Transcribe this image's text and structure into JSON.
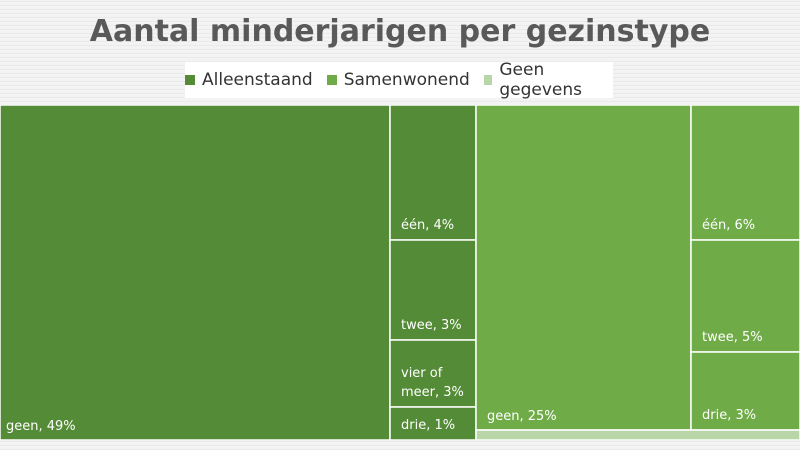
{
  "chart_data": {
    "type": "treemap",
    "title": "Aantal minderjarigen per gezinstype",
    "legend": [
      {
        "name": "Alleenstaand",
        "color": "#548b36"
      },
      {
        "name": "Samenwonend",
        "color": "#6fac47"
      },
      {
        "name": "Geen gegevens",
        "color": "#b8d6a8"
      }
    ],
    "legend_position": "top",
    "groups": [
      {
        "name": "Alleenstaand",
        "color": "#548b36",
        "tiles": [
          {
            "label": "geen, 49%",
            "value": 49
          },
          {
            "label": "één, 4%",
            "value": 4
          },
          {
            "label": "twee, 3%",
            "value": 3
          },
          {
            "label": "vier of meer, 3%",
            "value": 3
          },
          {
            "label": "drie, 1%",
            "value": 1
          }
        ]
      },
      {
        "name": "Samenwonend",
        "color": "#6fac47",
        "tiles": [
          {
            "label": "geen, 25%",
            "value": 25
          },
          {
            "label": "één, 6%",
            "value": 6
          },
          {
            "label": "twee, 5%",
            "value": 5
          },
          {
            "label": "drie, 3%",
            "value": 3
          }
        ]
      },
      {
        "name": "Geen gegevens",
        "color": "#b8d6a8",
        "tiles": []
      }
    ]
  }
}
